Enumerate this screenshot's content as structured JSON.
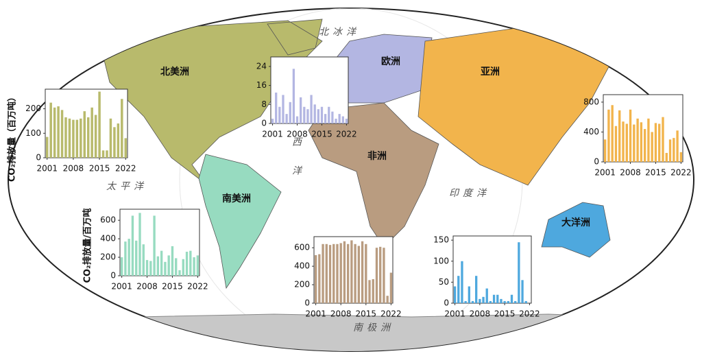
{
  "map": {
    "regions": [
      {
        "label": "北美洲",
        "color": "#b8ba6c"
      },
      {
        "label": "欧洲",
        "color": "#b3b6e2"
      },
      {
        "label": "亚洲",
        "color": "#f2b44c"
      },
      {
        "label": "非洲",
        "color": "#b99c80"
      },
      {
        "label": "南美洲",
        "color": "#97dbc0"
      },
      {
        "label": "大洋洲",
        "color": "#4ea8de"
      }
    ],
    "oceans": [
      "北冰洋",
      "太平洋",
      "大西洋",
      "印度洋",
      "南极洲"
    ]
  },
  "chart_data": [
    {
      "type": "bar",
      "color": "#b8ba6c",
      "ylabel": "CO₂排放量（百万吨）",
      "categories": [
        "2001",
        null,
        null,
        null,
        null,
        null,
        null,
        "2008",
        null,
        null,
        null,
        null,
        null,
        null,
        "2015",
        null,
        null,
        null,
        null,
        null,
        null,
        "2022"
      ],
      "values": [
        85,
        225,
        205,
        210,
        195,
        165,
        160,
        155,
        155,
        160,
        190,
        165,
        205,
        175,
        270,
        30,
        30,
        160,
        125,
        140,
        240,
        80
      ],
      "ylim": [
        0,
        280
      ],
      "yticks": [
        0,
        100,
        200
      ]
    },
    {
      "type": "bar",
      "color": "#b3b6e2",
      "categories": [
        "2001",
        null,
        null,
        null,
        null,
        null,
        null,
        "2008",
        null,
        null,
        null,
        null,
        null,
        null,
        "2015",
        null,
        null,
        null,
        null,
        null,
        null,
        "2022"
      ],
      "values": [
        2,
        13,
        7,
        12,
        4,
        9,
        23,
        3,
        11,
        7,
        6,
        12,
        8,
        6,
        7,
        4,
        7,
        5,
        2,
        4,
        3,
        2
      ],
      "ylim": [
        0,
        28
      ],
      "yticks": [
        0,
        8,
        16,
        24
      ]
    },
    {
      "type": "bar",
      "color": "#f2b44c",
      "categories": [
        "2001",
        null,
        null,
        null,
        null,
        null,
        null,
        "2008",
        null,
        null,
        null,
        null,
        null,
        null,
        "2015",
        null,
        null,
        null,
        null,
        null,
        null,
        "2022"
      ],
      "values": [
        300,
        700,
        760,
        480,
        690,
        540,
        510,
        700,
        500,
        580,
        530,
        440,
        580,
        400,
        520,
        510,
        600,
        120,
        300,
        320,
        420,
        130
      ],
      "ylim": [
        0,
        900
      ],
      "yticks": [
        0,
        400,
        800
      ]
    },
    {
      "type": "bar",
      "color": "#97dbc0",
      "ylabel": "CO₂排放量/百万吨",
      "categories": [
        "2001",
        null,
        null,
        null,
        null,
        null,
        null,
        "2008",
        null,
        null,
        null,
        null,
        null,
        null,
        "2015",
        null,
        null,
        null,
        null,
        null,
        null,
        "2022"
      ],
      "values": [
        200,
        370,
        400,
        650,
        380,
        680,
        340,
        170,
        160,
        650,
        210,
        270,
        150,
        220,
        320,
        190,
        60,
        180,
        260,
        270,
        200,
        220
      ],
      "ylim": [
        0,
        720
      ],
      "yticks": [
        0,
        200,
        400,
        600
      ]
    },
    {
      "type": "bar",
      "color": "#b99c80",
      "categories": [
        "2001",
        null,
        null,
        null,
        null,
        null,
        null,
        "2008",
        null,
        null,
        null,
        null,
        null,
        null,
        "2015",
        null,
        null,
        null,
        null,
        null,
        null,
        "2022"
      ],
      "values": [
        520,
        530,
        640,
        640,
        630,
        640,
        640,
        650,
        670,
        640,
        680,
        640,
        620,
        670,
        640,
        250,
        260,
        600,
        610,
        600,
        80,
        330
      ],
      "ylim": [
        0,
        720
      ],
      "yticks": [
        0,
        200,
        400,
        600
      ]
    },
    {
      "type": "bar",
      "color": "#4ea8de",
      "categories": [
        "2001",
        null,
        null,
        null,
        null,
        null,
        null,
        "2008",
        null,
        null,
        null,
        null,
        null,
        null,
        "2015",
        null,
        null,
        null,
        null,
        null,
        null,
        "2022"
      ],
      "values": [
        40,
        65,
        100,
        5,
        40,
        5,
        65,
        10,
        15,
        35,
        5,
        20,
        20,
        10,
        5,
        5,
        20,
        5,
        145,
        55,
        5,
        0
      ],
      "ylim": [
        0,
        160
      ],
      "yticks": [
        0,
        50,
        100,
        150
      ]
    }
  ]
}
